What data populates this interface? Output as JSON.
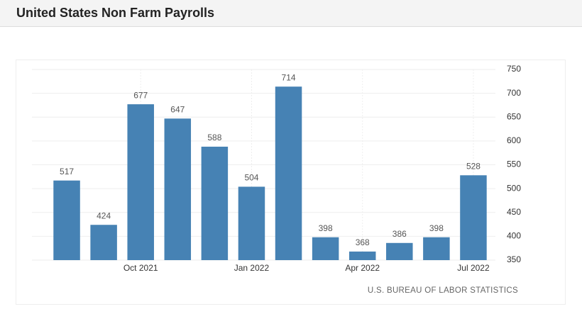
{
  "chart_data": {
    "type": "bar",
    "title": "United States Non Farm Payrolls",
    "categories": [
      null,
      null,
      "Oct 2021",
      null,
      null,
      "Jan 2022",
      null,
      null,
      "Apr 2022",
      null,
      null,
      "Jul 2022"
    ],
    "values": [
      517,
      424,
      677,
      647,
      588,
      504,
      714,
      398,
      368,
      386,
      398,
      528
    ],
    "color": "#4682b4",
    "ylim": [
      350,
      750
    ],
    "yticks": [
      350,
      400,
      450,
      500,
      550,
      600,
      650,
      700,
      750
    ],
    "grid": true,
    "source": "U.S. BUREAU OF LABOR STATISTICS"
  }
}
